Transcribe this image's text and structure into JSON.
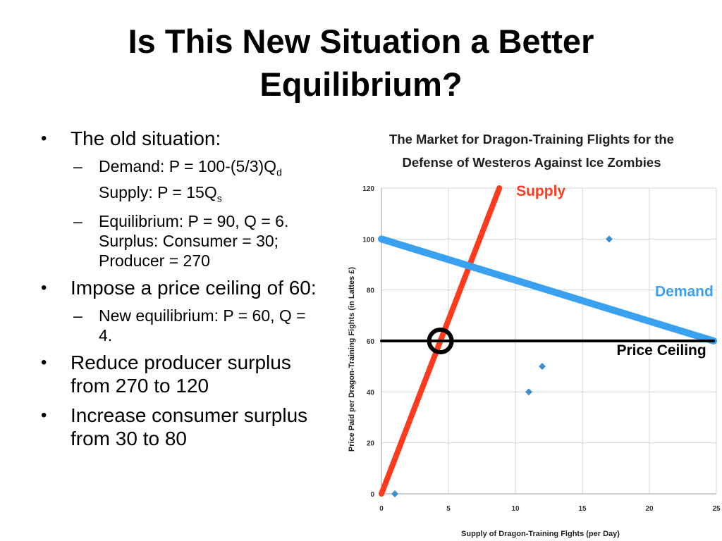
{
  "slide": {
    "title": "Is This New Situation a Better Equilibrium?",
    "bullets": [
      {
        "text": "The old situation:",
        "sub": [
          {
            "pre": "Demand: P = 100-(5/3)Q",
            "sub1": "d",
            "mid": " Supply: P = 15Q",
            "sub2": "s"
          },
          {
            "pre": "Equilibrium: P = 90, Q = 6. Surplus: Consumer = 30; Producer = 270"
          }
        ]
      },
      {
        "text": "Impose a price ceiling of 60:",
        "sub": [
          {
            "pre": "New equilibrium: P = 60, Q = 4."
          }
        ]
      },
      {
        "text": "Reduce producer surplus from 270 to 120",
        "sub": []
      },
      {
        "text": "Increase consumer surplus from 30 to 80",
        "sub": []
      }
    ],
    "bullet_glyph": "•",
    "dash_glyph": "–"
  },
  "chart_data": {
    "type": "line",
    "title": "The Market for Dragon-Training Flights for the Defense of Westeros Against Ice Zombies",
    "xlabel": "Supply of Dragon-Training Flghts (per Day)",
    "ylabel": "Price Paid per Dragon-Training Fights (in Lattes £)",
    "xlim": [
      0,
      25
    ],
    "ylim": [
      0,
      120
    ],
    "xticks": [
      0,
      5,
      10,
      15,
      20,
      25
    ],
    "yticks": [
      0,
      20,
      40,
      60,
      80,
      100,
      120
    ],
    "grid": true,
    "series": [
      {
        "name": "Supply",
        "kind": "line",
        "color": "#ff3b1f",
        "points": [
          [
            0,
            0
          ],
          [
            8.8,
            120
          ]
        ]
      },
      {
        "name": "Demand",
        "kind": "line",
        "color": "#3aa0f0",
        "points": [
          [
            0,
            100
          ],
          [
            24.8,
            60
          ]
        ]
      },
      {
        "name": "Price Ceiling",
        "kind": "line",
        "color": "#000000",
        "points": [
          [
            0,
            60
          ],
          [
            24.8,
            60
          ]
        ]
      },
      {
        "kind": "scatter",
        "color": "#3d8fd1",
        "points": [
          [
            1,
            0
          ],
          [
            11,
            40
          ],
          [
            12,
            50
          ],
          [
            17,
            100
          ]
        ]
      }
    ],
    "marker": {
      "x": 4.4,
      "y": 60,
      "shape": "circle"
    },
    "labels": [
      {
        "text": "Supply",
        "color": "#ff3b1f",
        "x": 11.9,
        "y": 117
      },
      {
        "text": "Demand",
        "color": "#3aa0f0",
        "x": 22.6,
        "y": 77.5
      },
      {
        "text": "Price Ceiling",
        "color": "#000000",
        "x": 20.9,
        "y": 54.5
      }
    ]
  }
}
